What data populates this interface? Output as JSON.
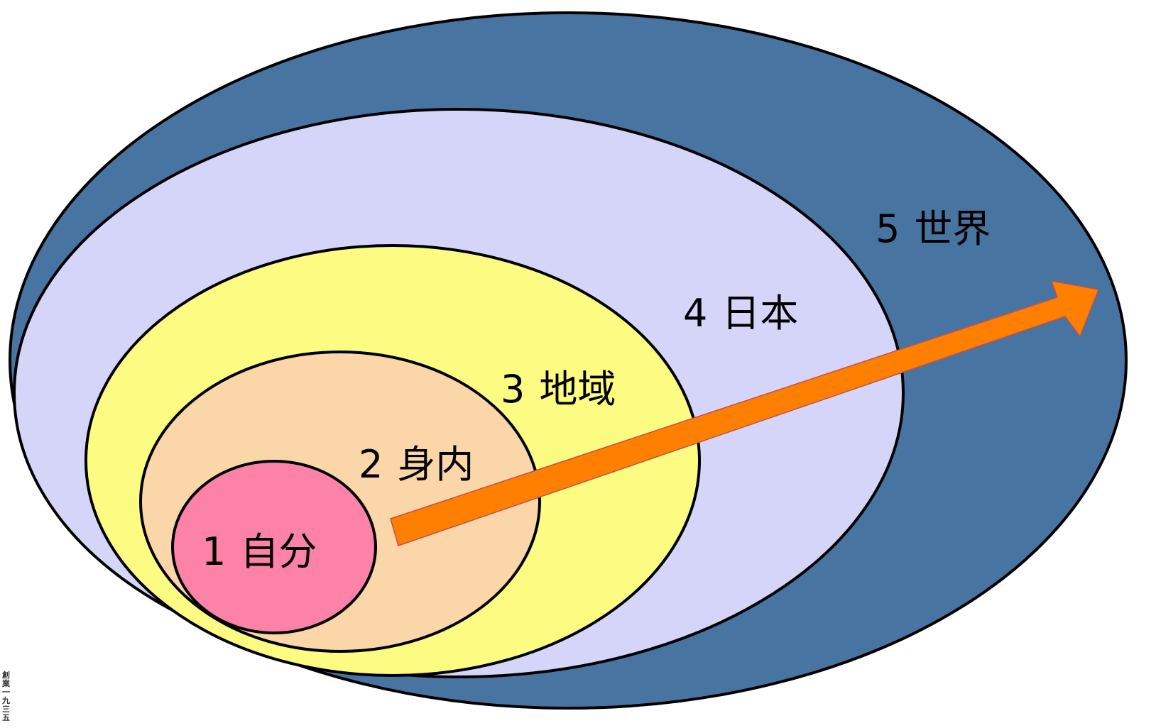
{
  "diagram": {
    "levels": [
      {
        "number": "1",
        "label": "自分",
        "fill": "#fd82a8"
      },
      {
        "number": "2",
        "label": "身内",
        "fill": "#fbd6a9"
      },
      {
        "number": "3",
        "label": "地域",
        "fill": "#fdfc82"
      },
      {
        "number": "4",
        "label": "日本",
        "fill": "#d5d5fa"
      },
      {
        "number": "5",
        "label": "世界",
        "fill": "#4774a1"
      }
    ],
    "arrow_color": "#ff7f00",
    "outline_color": "#000000",
    "stamp": {
      "text": "創業一九三五"
    }
  }
}
